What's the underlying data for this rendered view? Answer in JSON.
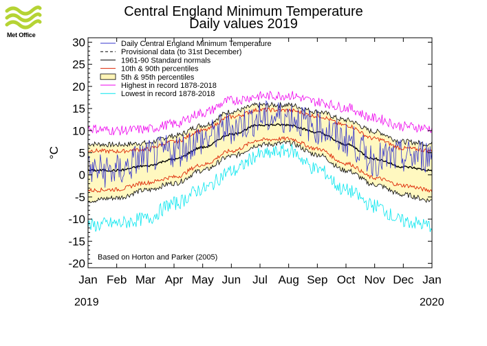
{
  "logo": {
    "text": "Met Office",
    "color": "#b5d334"
  },
  "chart_data": {
    "type": "line",
    "title": "Central England Minimum Temperature",
    "subtitle": "Daily values 2019",
    "ylabel": "°C",
    "ylim": [
      -21,
      31
    ],
    "yticks": [
      30,
      25,
      20,
      15,
      10,
      5,
      0,
      -5,
      -10,
      -15,
      -20
    ],
    "xticks": [
      "Jan",
      "Feb",
      "Mar",
      "Apr",
      "May",
      "Jun",
      "Jul",
      "Aug",
      "Sep",
      "Oct",
      "Nov",
      "Dec",
      "Jan"
    ],
    "year_start": "2019",
    "year_end": "2020",
    "note": "Based on Horton and Parker (2005)",
    "legend_position": "top-left",
    "legend": [
      {
        "label": "Daily Central England Minimum Temperature",
        "color": "#3333cc",
        "style": "line"
      },
      {
        "label": "Provisional data (to 31st December)",
        "color": "#000000",
        "style": "dashed"
      },
      {
        "label": "1961-90 Standard normals",
        "color": "#000000",
        "style": "line"
      },
      {
        "label": "10th & 90th percentiles",
        "color": "#dd2200",
        "style": "line"
      },
      {
        "label": "5th & 95th percentiles",
        "color": "#fff5b8",
        "style": "box"
      },
      {
        "label": "Highest in record 1878-2018",
        "color": "#ee00ee",
        "style": "line"
      },
      {
        "label": "Lowest in record 1878-2018",
        "color": "#00e5ee",
        "style": "line"
      }
    ],
    "series_monthly": {
      "months": [
        "Jan",
        "Feb",
        "Mar",
        "Apr",
        "May",
        "Jun",
        "Jul",
        "Aug",
        "Sep",
        "Oct",
        "Nov",
        "Dec",
        "Jan"
      ],
      "normal": [
        1.0,
        1.0,
        2.0,
        3.5,
        6.2,
        9.2,
        11.3,
        11.3,
        9.6,
        6.9,
        3.6,
        1.8,
        1.0
      ],
      "p10": [
        -3.5,
        -3.3,
        -1.8,
        -0.5,
        2.3,
        5.4,
        7.9,
        8.2,
        5.9,
        2.6,
        -0.7,
        -2.4,
        -3.5
      ],
      "p90": [
        5.5,
        5.3,
        5.8,
        7.5,
        10.0,
        13.1,
        14.7,
        14.6,
        13.3,
        11.2,
        8.2,
        6.0,
        5.5
      ],
      "p5": [
        -5.8,
        -5.2,
        -3.5,
        -1.9,
        1.0,
        4.2,
        6.8,
        7.2,
        4.6,
        1.0,
        -2.2,
        -4.5,
        -5.8
      ],
      "p95": [
        7.0,
        6.8,
        7.2,
        8.8,
        11.2,
        14.3,
        15.8,
        15.8,
        14.3,
        12.4,
        9.8,
        7.5,
        7.0
      ],
      "highest": [
        10.5,
        10.0,
        10.3,
        11.5,
        14.0,
        16.8,
        17.8,
        18.0,
        16.5,
        15.2,
        12.8,
        11.0,
        10.5
      ],
      "lowest": [
        -11.5,
        -11.0,
        -10.0,
        -6.5,
        -3.2,
        0.8,
        4.5,
        5.5,
        1.3,
        -3.5,
        -7.0,
        -10.5,
        -11.5
      ],
      "daily_2019": [
        1.0,
        0.8,
        4.0,
        5.5,
        8.0,
        10.8,
        12.8,
        13.2,
        10.8,
        8.0,
        3.5,
        4.0,
        4.5
      ]
    }
  }
}
